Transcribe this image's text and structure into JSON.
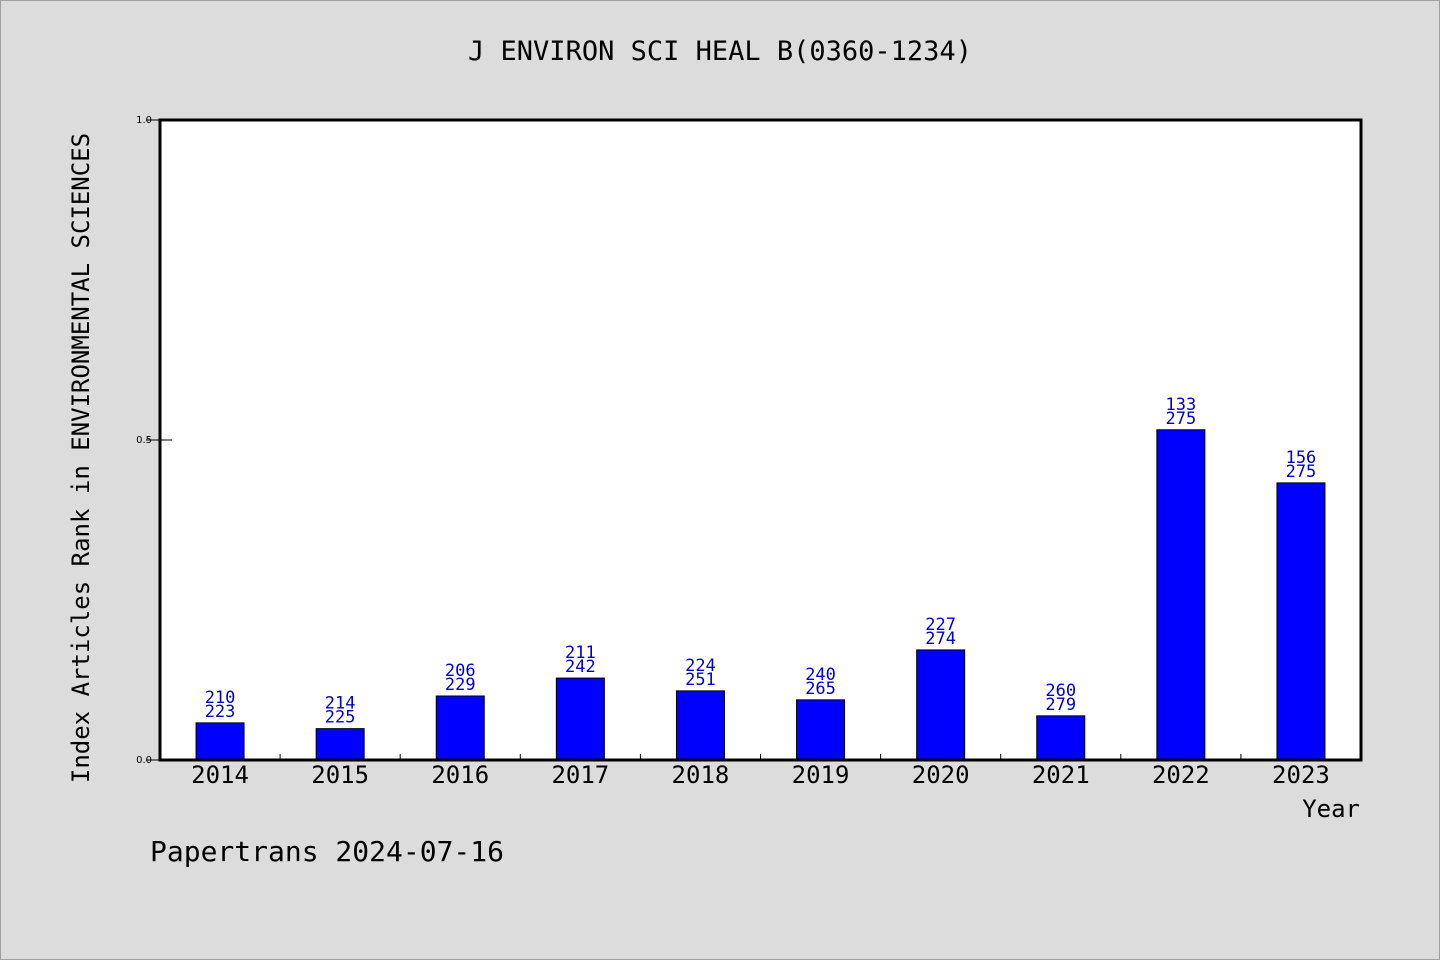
{
  "chart_data": {
    "type": "bar",
    "title": "J ENVIRON SCI HEAL B(0360-1234)",
    "xlabel": "Year",
    "ylabel": "Index Articles Rank in ENVIRONMENTAL SCIENCES",
    "ylim": [
      0,
      1
    ],
    "yticks": [
      "0.0",
      "0.5",
      "1.0"
    ],
    "categories": [
      "2014",
      "2015",
      "2016",
      "2017",
      "2018",
      "2019",
      "2020",
      "2021",
      "2022",
      "2023"
    ],
    "values": [
      0.058,
      0.049,
      0.1,
      0.128,
      0.108,
      0.094,
      0.172,
      0.069,
      0.516,
      0.433
    ],
    "rank": [
      "210",
      "214",
      "206",
      "211",
      "224",
      "240",
      "227",
      "260",
      "133",
      "156"
    ],
    "total": [
      "223",
      "225",
      "229",
      "242",
      "251",
      "265",
      "274",
      "279",
      "275",
      "275"
    ],
    "bar_color": "#0000ff",
    "label_color": "#0000cc",
    "grid": false
  },
  "footer": "Papertrans 2024-07-16"
}
